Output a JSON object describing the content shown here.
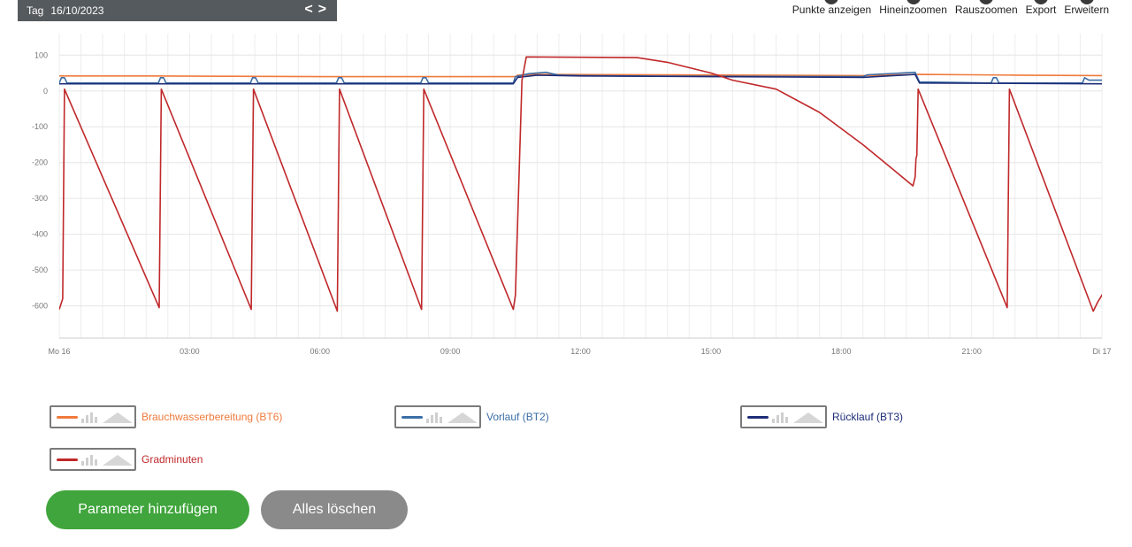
{
  "header": {
    "day_label": "Tag",
    "date": "16/10/2023",
    "prev_icon": "chevron-left-icon",
    "next_icon": "chevron-right-icon",
    "prev_glyph": "<",
    "next_glyph": ">"
  },
  "toolbar": {
    "show_points": "Punkte anzeigen",
    "zoom_in": "Hineinzoomen",
    "zoom_out": "Rauszoomen",
    "export": "Export",
    "expand": "Erweitern"
  },
  "chart_data": {
    "type": "line",
    "title": "",
    "xlabel": "",
    "ylabel": "",
    "grid": true,
    "legend_placement": "bottom",
    "xlim": [
      0,
      24
    ],
    "ylim": [
      -690,
      160
    ],
    "yticks": [
      100,
      0,
      -100,
      -200,
      -300,
      -400,
      -500,
      -600
    ],
    "xticks": [
      {
        "x": 0,
        "label": "Mo 16"
      },
      {
        "x": 3,
        "label": "03:00"
      },
      {
        "x": 6,
        "label": "06:00"
      },
      {
        "x": 9,
        "label": "09:00"
      },
      {
        "x": 12,
        "label": "12:00"
      },
      {
        "x": 15,
        "label": "15:00"
      },
      {
        "x": 18,
        "label": "18:00"
      },
      {
        "x": 21,
        "label": "21:00"
      },
      {
        "x": 24,
        "label": "Di 17"
      }
    ],
    "series": [
      {
        "name": "Brauchwasserbereitung (BT6)",
        "color": "#f07a3c",
        "points": [
          [
            0,
            42
          ],
          [
            2,
            42
          ],
          [
            4,
            41
          ],
          [
            6,
            40
          ],
          [
            8,
            40
          ],
          [
            10.5,
            40
          ],
          [
            10.55,
            44
          ],
          [
            11,
            46
          ],
          [
            14,
            45
          ],
          [
            16,
            44
          ],
          [
            18.5,
            43
          ],
          [
            19.8,
            46
          ],
          [
            21,
            45
          ],
          [
            22,
            44
          ],
          [
            24,
            43
          ]
        ]
      },
      {
        "name": "Vorlauf (BT2)",
        "color": "#3b6ea5",
        "points": [
          [
            0,
            22
          ],
          [
            0.05,
            37
          ],
          [
            0.12,
            37
          ],
          [
            0.18,
            22
          ],
          [
            2.28,
            22
          ],
          [
            2.33,
            37
          ],
          [
            2.4,
            37
          ],
          [
            2.46,
            22
          ],
          [
            4.4,
            22
          ],
          [
            4.45,
            37
          ],
          [
            4.52,
            37
          ],
          [
            4.58,
            22
          ],
          [
            6.38,
            22
          ],
          [
            6.43,
            37
          ],
          [
            6.5,
            37
          ],
          [
            6.56,
            22
          ],
          [
            8.32,
            22
          ],
          [
            8.37,
            37
          ],
          [
            8.44,
            37
          ],
          [
            8.5,
            22
          ],
          [
            10.45,
            22
          ],
          [
            10.5,
            40
          ],
          [
            10.8,
            48
          ],
          [
            11.2,
            52
          ],
          [
            11.5,
            44
          ],
          [
            12,
            43
          ],
          [
            13,
            42
          ],
          [
            15,
            41
          ],
          [
            18.5,
            40
          ],
          [
            18.6,
            45
          ],
          [
            19.7,
            52
          ],
          [
            19.8,
            25
          ],
          [
            21.45,
            22
          ],
          [
            21.5,
            37
          ],
          [
            21.57,
            37
          ],
          [
            21.63,
            22
          ],
          [
            23.55,
            22
          ],
          [
            23.6,
            37
          ],
          [
            23.7,
            30
          ],
          [
            24,
            30
          ]
        ]
      },
      {
        "name": "Rücklauf (BT3)",
        "color": "#1d2d78",
        "points": [
          [
            0,
            20
          ],
          [
            10.45,
            20
          ],
          [
            10.55,
            38
          ],
          [
            11,
            44
          ],
          [
            12,
            42
          ],
          [
            15,
            40
          ],
          [
            18.5,
            38
          ],
          [
            19.7,
            46
          ],
          [
            19.8,
            22
          ],
          [
            24,
            20
          ]
        ]
      },
      {
        "name": "Gradminuten",
        "color": "#c0282a",
        "points": [
          [
            0,
            -610
          ],
          [
            0.08,
            -580
          ],
          [
            0.12,
            5
          ],
          [
            2.3,
            -605
          ],
          [
            2.35,
            5
          ],
          [
            4.42,
            -610
          ],
          [
            4.47,
            5
          ],
          [
            6.4,
            -615
          ],
          [
            6.45,
            5
          ],
          [
            8.34,
            -610
          ],
          [
            8.39,
            5
          ],
          [
            10.45,
            -610
          ],
          [
            10.5,
            -570
          ],
          [
            10.65,
            30
          ],
          [
            10.75,
            95
          ],
          [
            12,
            94
          ],
          [
            13.3,
            93
          ],
          [
            14,
            80
          ],
          [
            15,
            50
          ],
          [
            15.5,
            30
          ],
          [
            16.5,
            5
          ],
          [
            17.5,
            -60
          ],
          [
            18.5,
            -150
          ],
          [
            19.3,
            -230
          ],
          [
            19.65,
            -265
          ],
          [
            19.7,
            -240
          ],
          [
            19.72,
            -190
          ],
          [
            19.74,
            -180
          ],
          [
            19.77,
            5
          ],
          [
            21.82,
            -605
          ],
          [
            21.87,
            5
          ],
          [
            23.8,
            -615
          ],
          [
            23.9,
            -590
          ],
          [
            24,
            -570
          ],
          [
            24.1,
            -550
          ],
          [
            24.2,
            -538
          ]
        ]
      }
    ]
  },
  "buttons": {
    "add": "Parameter hinzufügen",
    "clear": "Alles löschen"
  }
}
